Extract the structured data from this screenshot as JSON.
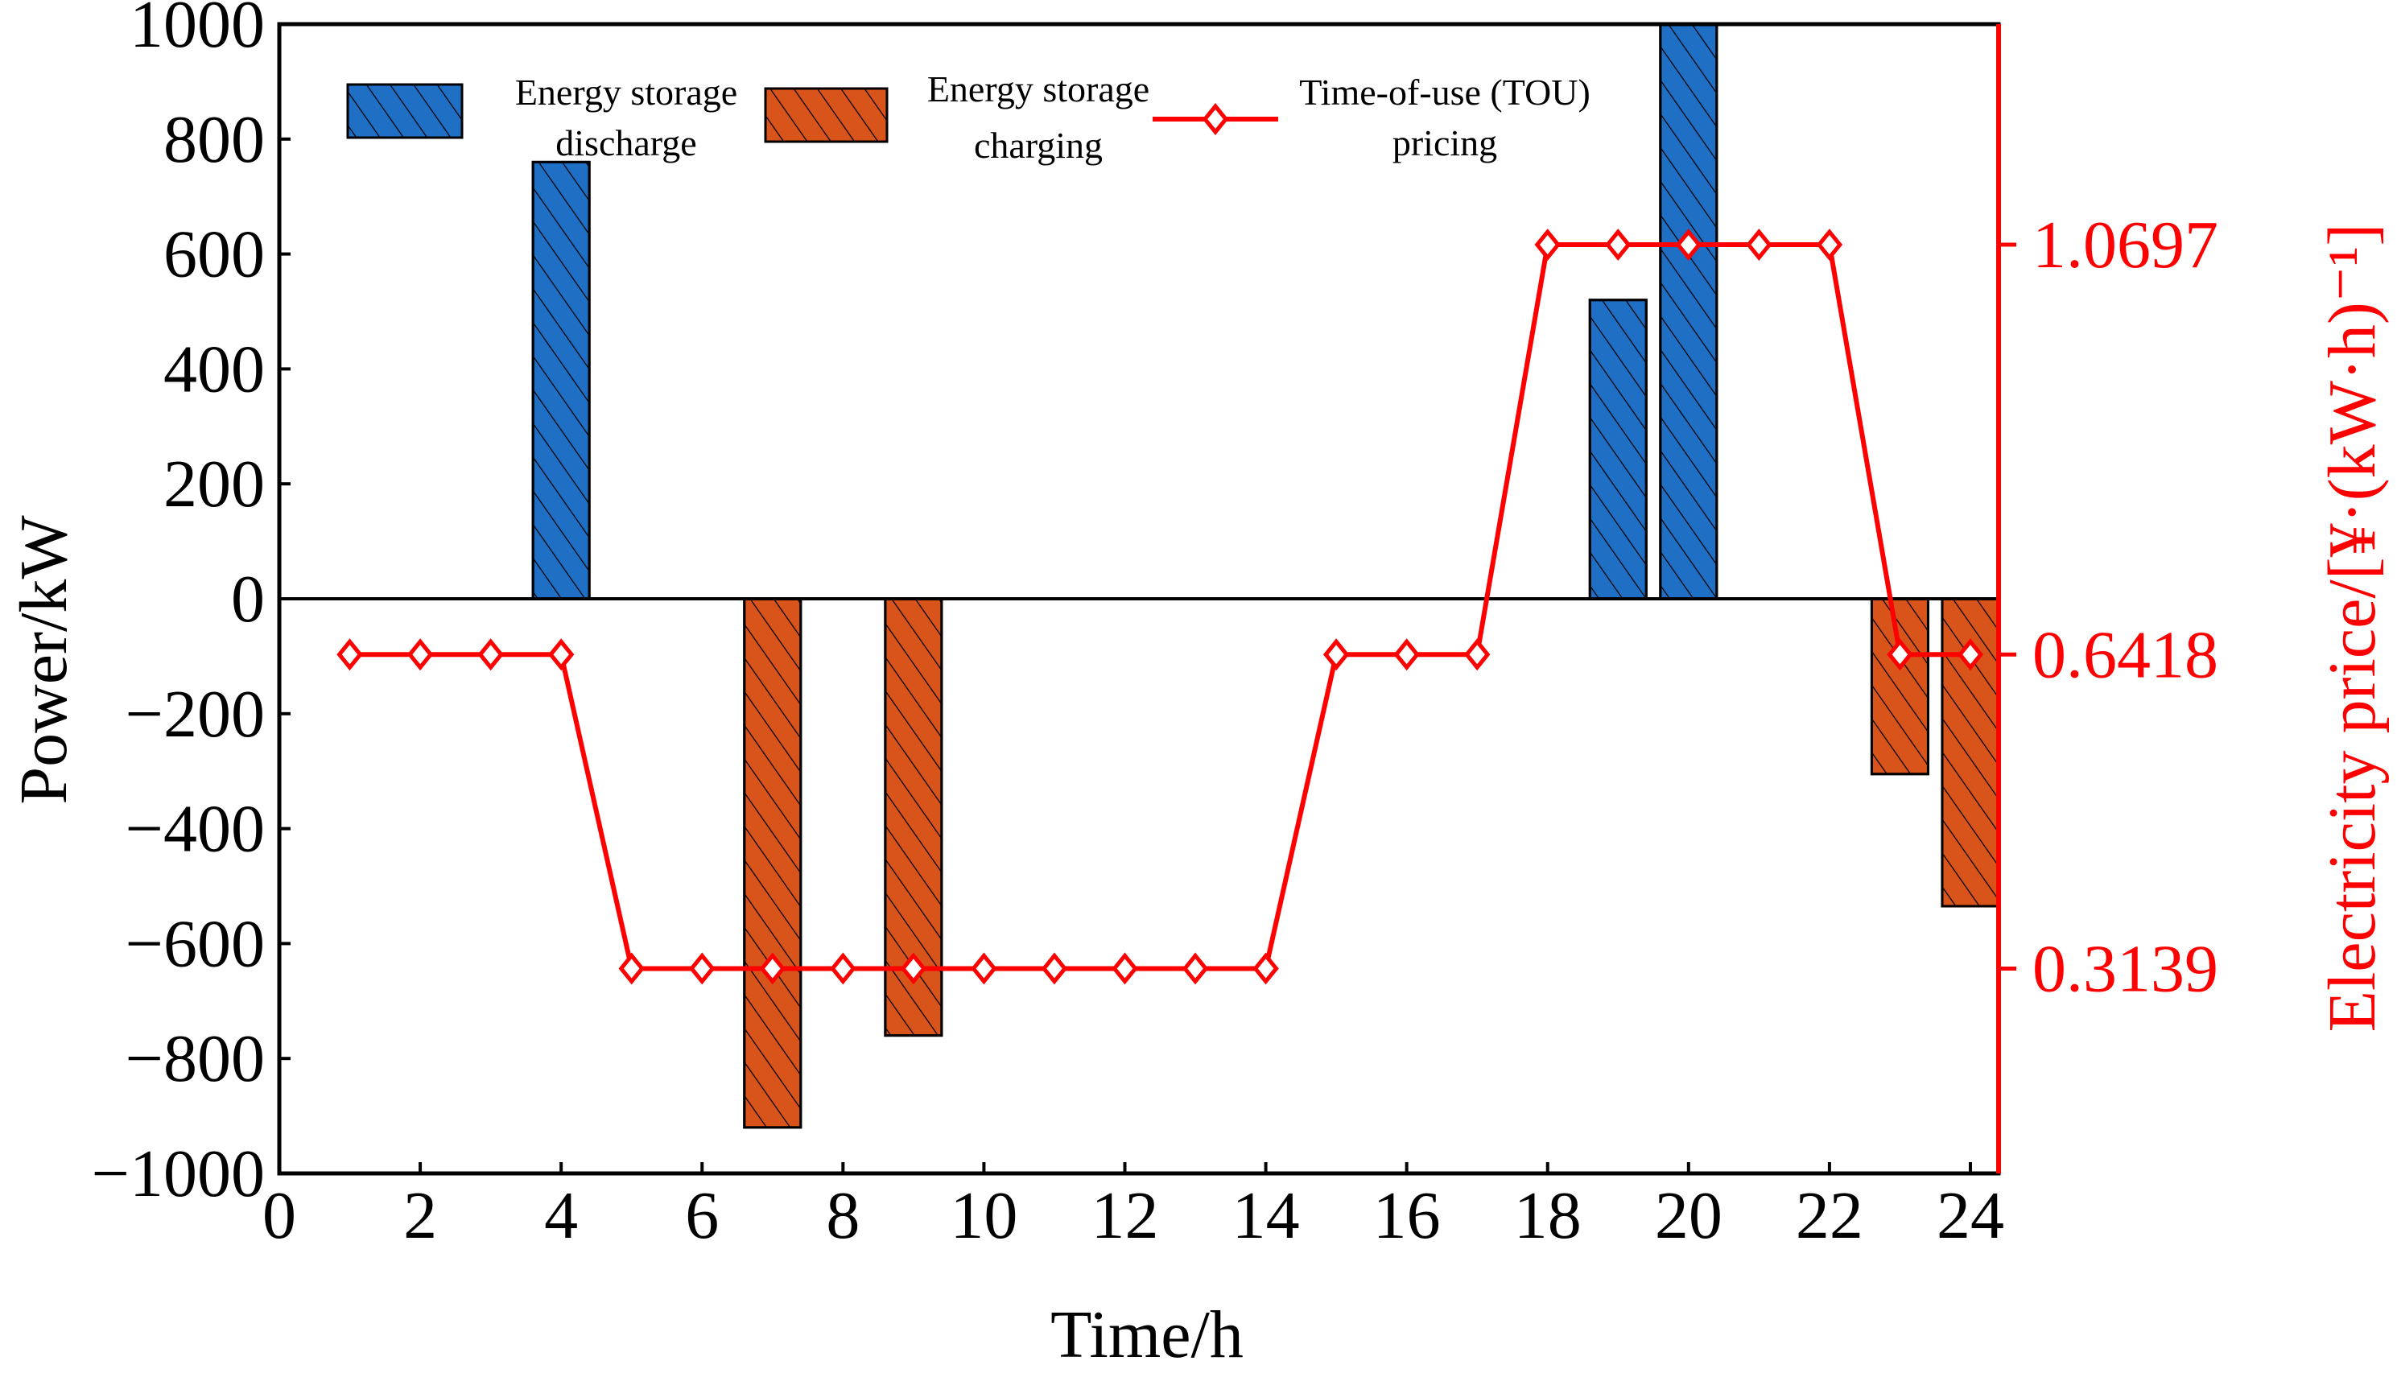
{
  "chart_data": {
    "type": "bar+line",
    "xlabel": "Time/h",
    "ylabel": "Power/kW",
    "y2label": "Electricity price/[¥·(kW·h)⁻¹]",
    "xlim": [
      0,
      24.4
    ],
    "ylim": [
      -1000,
      1000
    ],
    "y2lim": [
      0.1,
      1.3
    ],
    "x_ticks": [
      "0",
      "2",
      "4",
      "6",
      "8",
      "10",
      "12",
      "14",
      "16",
      "18",
      "20",
      "22",
      "24"
    ],
    "y_ticks": [
      "1000",
      "800",
      "600",
      "400",
      "200",
      "0",
      "−200",
      "−400",
      "−600",
      "−800",
      "−1000"
    ],
    "y2_ticks": [
      "1.0697",
      "0.6418",
      "0.3139"
    ],
    "series": [
      {
        "name": "Energy storage discharge",
        "kind": "bar",
        "color": "#1f6fc5",
        "points": [
          [
            4,
            760
          ],
          [
            19,
            520
          ],
          [
            20,
            1000
          ]
        ]
      },
      {
        "name": "Energy storage charging",
        "kind": "bar",
        "color": "#d9541a",
        "points": [
          [
            7,
            -920
          ],
          [
            9,
            -760
          ],
          [
            23,
            -305
          ],
          [
            24,
            -535
          ]
        ]
      },
      {
        "name": "Time-of-use (TOU) pricing",
        "kind": "line",
        "color": "#ff0000",
        "x": [
          1,
          2,
          3,
          4,
          5,
          6,
          7,
          8,
          9,
          10,
          11,
          12,
          13,
          14,
          15,
          16,
          17,
          18,
          19,
          20,
          21,
          22,
          23,
          24
        ],
        "values": [
          0.6418,
          0.6418,
          0.6418,
          0.6418,
          0.3139,
          0.3139,
          0.3139,
          0.3139,
          0.3139,
          0.3139,
          0.3139,
          0.3139,
          0.3139,
          0.3139,
          0.6418,
          0.6418,
          0.6418,
          1.0697,
          1.0697,
          1.0697,
          1.0697,
          1.0697,
          0.6418,
          0.6418
        ]
      }
    ],
    "legend": {
      "discharge": [
        "Energy storage",
        "discharge"
      ],
      "charging": [
        "Energy storage",
        "charging"
      ],
      "pricing": [
        "Time-of-use (TOU)",
        "pricing"
      ]
    }
  }
}
